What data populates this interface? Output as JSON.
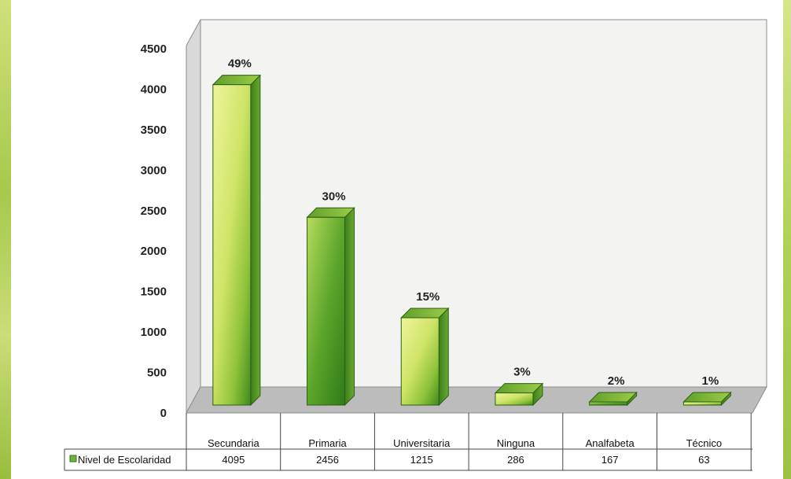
{
  "chart_data": {
    "type": "bar",
    "categories": [
      "Secundaria",
      "Primaria",
      "Universitaria",
      "Ninguna",
      "Analfabeta",
      "Técnico"
    ],
    "series": [
      {
        "name": "Nivel de Escolaridad",
        "values": [
          4095,
          2456,
          1215,
          286,
          167,
          63
        ]
      }
    ],
    "percent_labels": [
      "49%",
      "30%",
      "15%",
      "3%",
      "2%",
      "1%"
    ],
    "yticks": [
      "0",
      "500",
      "1000",
      "1500",
      "2000",
      "2500",
      "3000",
      "3500",
      "4000",
      "4500"
    ],
    "ylim": [
      0,
      4500
    ],
    "title": "",
    "xlabel": "",
    "ylabel": "",
    "legend_position": "data-table-left",
    "colors": {
      "bar_light": "#e4ee8e",
      "bar_mid": "#9fcd3a",
      "bar_dark": "#3f8a1e",
      "wall": "#f3f4f1",
      "floor": "#bcbcbc"
    }
  }
}
